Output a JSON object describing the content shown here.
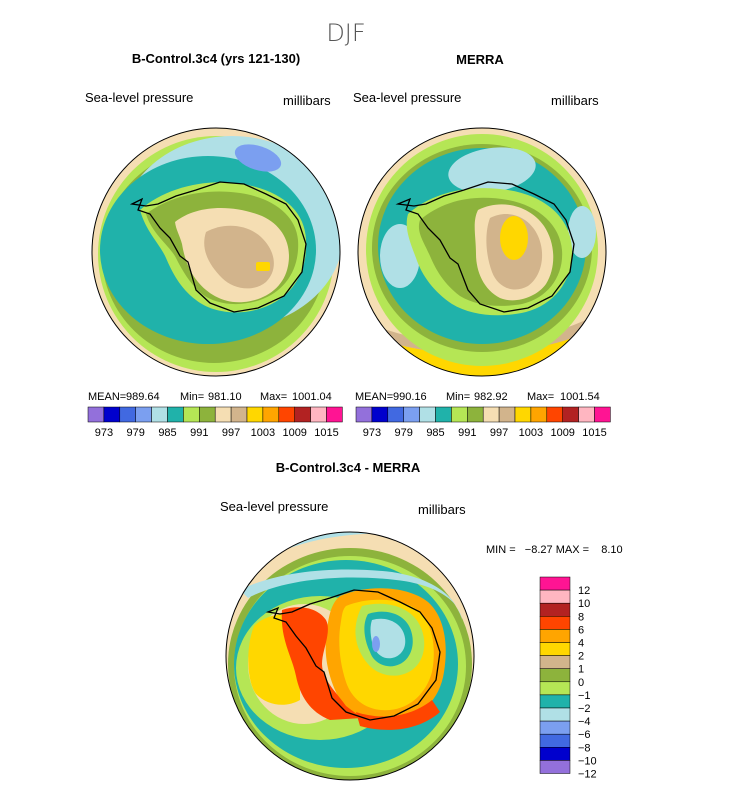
{
  "page_title": "DJF",
  "chart_data": [
    {
      "type": "heatmap",
      "title": "B-Control.3c4 (yrs 121-130)",
      "variable": "Sea-level pressure",
      "units": "millibars",
      "stats": {
        "mean_label": "MEAN=",
        "mean": "989.64",
        "min_label": "Min=",
        "min": "981.10",
        "max_label": "Max=",
        "max": "1001.04"
      },
      "legend_labels": [
        "973",
        "979",
        "985",
        "991",
        "997",
        "1003",
        "1009",
        "1015"
      ],
      "color_levels": [
        "#9370db",
        "#0000cd",
        "#4169e1",
        "#7b9ff0",
        "#b0e0e6",
        "#20b2aa",
        "#b5e655",
        "#8db33c",
        "#f5deb3",
        "#d2b48c",
        "#ffd700",
        "#ffa500",
        "#ff4500",
        "#b22222",
        "#ffb6c1",
        "#ff1493"
      ]
    },
    {
      "type": "heatmap",
      "title": "MERRA",
      "variable": "Sea-level pressure",
      "units": "millibars",
      "stats": {
        "mean_label": "MEAN=",
        "mean": "990.16",
        "min_label": "Min=",
        "min": "982.92",
        "max_label": "Max=",
        "max": "1001.54"
      },
      "legend_labels": [
        "973",
        "979",
        "985",
        "991",
        "997",
        "1003",
        "1009",
        "1015"
      ],
      "color_levels": [
        "#9370db",
        "#0000cd",
        "#4169e1",
        "#7b9ff0",
        "#b0e0e6",
        "#20b2aa",
        "#b5e655",
        "#8db33c",
        "#f5deb3",
        "#d2b48c",
        "#ffd700",
        "#ffa500",
        "#ff4500",
        "#b22222",
        "#ffb6c1",
        "#ff1493"
      ]
    },
    {
      "type": "heatmap",
      "title": "B-Control.3c4 - MERRA",
      "variable": "Sea-level pressure",
      "units": "millibars",
      "stats_text": "MIN =   −8.27 MAX =    8.10",
      "legend_labels": [
        "12",
        "10",
        "8",
        "6",
        "4",
        "2",
        "1",
        "0",
        "−1",
        "−2",
        "−4",
        "−6",
        "−8",
        "−10",
        "−12"
      ],
      "color_levels": [
        "#ff1493",
        "#ffb6c1",
        "#b22222",
        "#ff4500",
        "#ffa500",
        "#ffd700",
        "#d2b48c",
        "#8db33c",
        "#b5e655",
        "#20b2aa",
        "#b0e0e6",
        "#7b9ff0",
        "#4169e1",
        "#0000cd",
        "#9370db"
      ]
    }
  ]
}
